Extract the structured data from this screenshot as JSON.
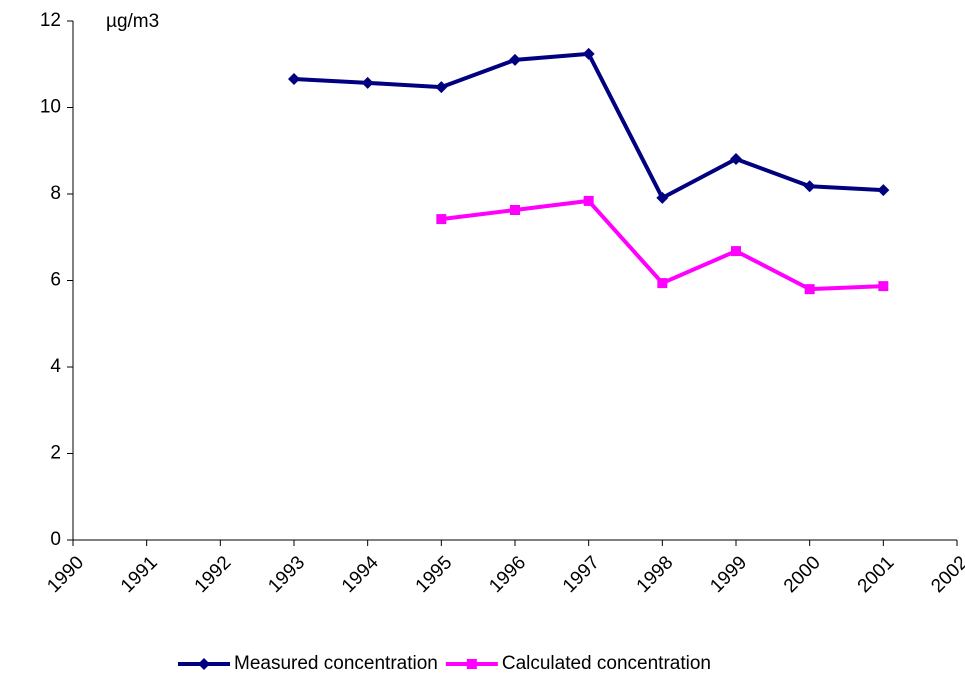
{
  "chart_data": {
    "type": "line",
    "y_label": "µg/m3",
    "x": [
      1993,
      1994,
      1995,
      1996,
      1997,
      1998,
      1999,
      2000,
      2001
    ],
    "xlim": [
      1990,
      2002
    ],
    "xticks": [
      1990,
      1991,
      1992,
      1993,
      1994,
      1995,
      1996,
      1997,
      1998,
      1999,
      2000,
      2001,
      2002
    ],
    "ylim": [
      0,
      12
    ],
    "yticks": [
      0,
      2,
      4,
      6,
      8,
      10,
      12
    ],
    "grid": false,
    "legend": "bottom",
    "series": [
      {
        "name": "Measured concentration",
        "color": "#000080",
        "marker": "diamond",
        "values": [
          10.66,
          10.57,
          10.47,
          11.1,
          11.24,
          7.91,
          8.81,
          8.18,
          8.09
        ]
      },
      {
        "name": "Calculated concentration",
        "color": "#ff00ff",
        "marker": "square",
        "values": [
          null,
          null,
          7.42,
          7.63,
          7.84,
          5.94,
          6.68,
          5.8,
          5.87
        ]
      }
    ]
  }
}
